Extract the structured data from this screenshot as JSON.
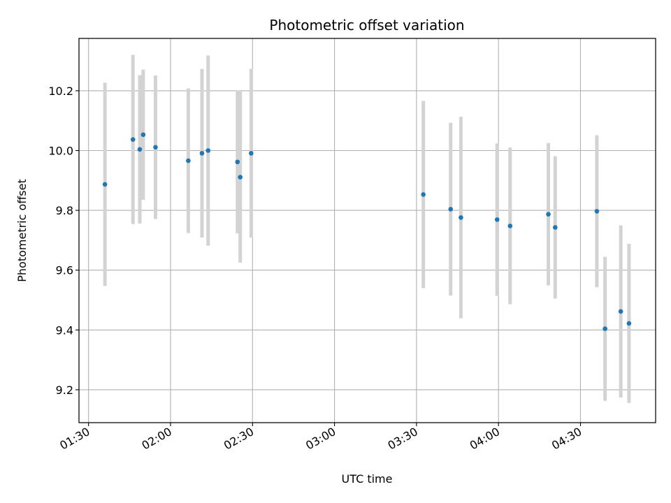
{
  "chart_data": {
    "type": "scatter",
    "title": "Photometric offset variation",
    "xlabel": "UTC time",
    "ylabel": "Photometric offset",
    "x_tick_labels": [
      "01:30",
      "02:00",
      "02:30",
      "03:00",
      "03:30",
      "04:00",
      "04:30"
    ],
    "y_tick_labels": [
      "9.2",
      "9.4",
      "9.6",
      "9.8",
      "10.0",
      "10.2"
    ],
    "xlim": [
      "01:26:30",
      "04:57:30"
    ],
    "ylim": [
      9.09,
      10.375
    ],
    "grid": true,
    "colors": {
      "point": "#1f77b4",
      "errorbar": "#d3d3d3",
      "grid": "#b0b0b0"
    },
    "points": [
      {
        "t": "01:36:00",
        "y": 9.887,
        "err": 0.34
      },
      {
        "t": "01:46:15",
        "y": 10.037,
        "err": 0.283
      },
      {
        "t": "01:48:45",
        "y": 10.004,
        "err": 0.248
      },
      {
        "t": "01:50:00",
        "y": 10.053,
        "err": 0.218
      },
      {
        "t": "01:54:30",
        "y": 10.011,
        "err": 0.24
      },
      {
        "t": "02:06:30",
        "y": 9.966,
        "err": 0.242
      },
      {
        "t": "02:11:30",
        "y": 9.991,
        "err": 0.282
      },
      {
        "t": "02:13:45",
        "y": 10.0,
        "err": 0.318
      },
      {
        "t": "02:24:30",
        "y": 9.962,
        "err": 0.239
      },
      {
        "t": "02:25:30",
        "y": 9.911,
        "err": 0.286
      },
      {
        "t": "02:29:30",
        "y": 9.991,
        "err": 0.282
      },
      {
        "t": "03:32:30",
        "y": 9.853,
        "err": 0.313
      },
      {
        "t": "03:42:30",
        "y": 9.804,
        "err": 0.289
      },
      {
        "t": "03:46:15",
        "y": 9.776,
        "err": 0.337
      },
      {
        "t": "03:59:30",
        "y": 9.769,
        "err": 0.255
      },
      {
        "t": "04:04:15",
        "y": 9.748,
        "err": 0.262
      },
      {
        "t": "04:18:15",
        "y": 9.787,
        "err": 0.238
      },
      {
        "t": "04:20:45",
        "y": 9.743,
        "err": 0.238
      },
      {
        "t": "04:36:00",
        "y": 9.797,
        "err": 0.254
      },
      {
        "t": "04:39:00",
        "y": 9.404,
        "err": 0.241
      },
      {
        "t": "04:44:45",
        "y": 9.462,
        "err": 0.288
      },
      {
        "t": "04:47:45",
        "y": 9.422,
        "err": 0.266
      }
    ]
  }
}
